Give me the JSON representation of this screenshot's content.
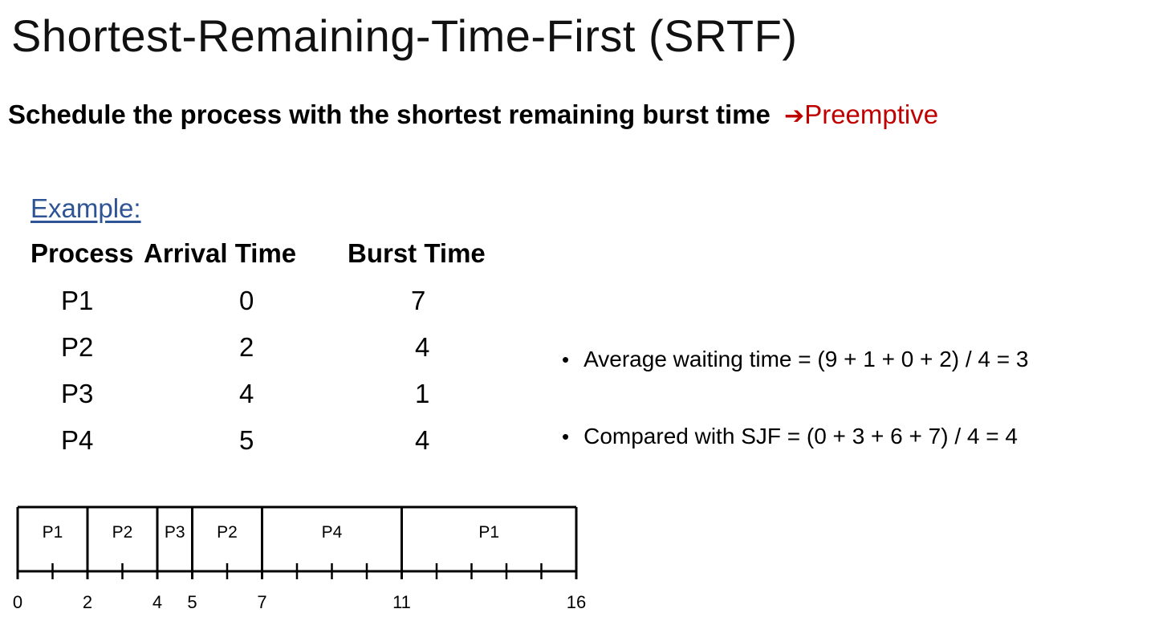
{
  "slide": {
    "title": "Shortest-Remaining-Time-First (SRTF)",
    "subtitle_bold": "Schedule the process with the shortest remaining burst time",
    "subtitle_arrow": "➔",
    "subtitle_highlight": "Preemptive",
    "example_label": "Example:"
  },
  "table": {
    "headers": [
      "Process",
      "Arrival Time",
      "Burst Time"
    ],
    "rows": [
      {
        "process": "P1",
        "arrival": "0",
        "burst": "7"
      },
      {
        "process": "P2",
        "arrival": "2",
        "burst": "4"
      },
      {
        "process": "P3",
        "arrival": "4",
        "burst": "1"
      },
      {
        "process": "P4",
        "arrival": "5",
        "burst": "4"
      }
    ]
  },
  "bullets": [
    "Average waiting time = (9 + 1 + 0 + 2) / 4 = 3",
    "Compared with SJF = (0 + 3 + 6 + 7) / 4 = 4"
  ],
  "gantt": {
    "segments": [
      {
        "label": "P1",
        "start": 0,
        "end": 2
      },
      {
        "label": "P2",
        "start": 2,
        "end": 4
      },
      {
        "label": "P3",
        "start": 4,
        "end": 5
      },
      {
        "label": "P2",
        "start": 5,
        "end": 7
      },
      {
        "label": "P4",
        "start": 7,
        "end": 11
      },
      {
        "label": "P1",
        "start": 11,
        "end": 16
      }
    ],
    "tick_labels": [
      "0",
      "2",
      "4",
      "5",
      "7",
      "11",
      "16"
    ],
    "time_range": [
      0,
      16
    ]
  },
  "colors": {
    "accent_red": "#c00000",
    "link_blue": "#2f5496",
    "text": "#000000"
  }
}
